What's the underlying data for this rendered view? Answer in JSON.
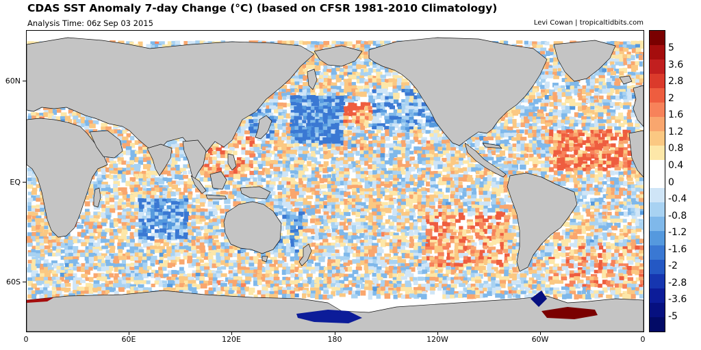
{
  "header": {
    "title": "CDAS SST Anomaly 7-day Change (°C) (based on CFSR 1981-2010 Climatology)",
    "subtitle": "Analysis Time: 06z Sep 03 2015",
    "credit": "Levi Cowan | tropicaltidbits.com"
  },
  "axes": {
    "lat_labels": [
      "60N",
      "EQ",
      "60S"
    ],
    "lon_labels": [
      "0",
      "60E",
      "120E",
      "180",
      "120W",
      "60W",
      "0"
    ]
  },
  "colorbar": {
    "labels": [
      "5",
      "3.6",
      "2.8",
      "2",
      "1.6",
      "1.2",
      "0.8",
      "0.4",
      "0",
      "-0.4",
      "-0.8",
      "-1.2",
      "-1.6",
      "-2",
      "-2.8",
      "-3.6",
      "-5"
    ],
    "colors": [
      "#7a0000",
      "#a50d0d",
      "#c21f1f",
      "#db3a2b",
      "#ee5d3f",
      "#f7825a",
      "#f9a66e",
      "#fbc882",
      "#fde7a8",
      "#ffffff",
      "#ffffff",
      "#cfe5f7",
      "#a8d2f2",
      "#7fb8ea",
      "#5599de",
      "#3a78d3",
      "#2458c4",
      "#1636b0",
      "#0c1c99",
      "#061080",
      "#020a66"
    ]
  },
  "colors": {
    "land": "#c4c4c4",
    "ice_shelf_white": "#ffffff"
  }
}
